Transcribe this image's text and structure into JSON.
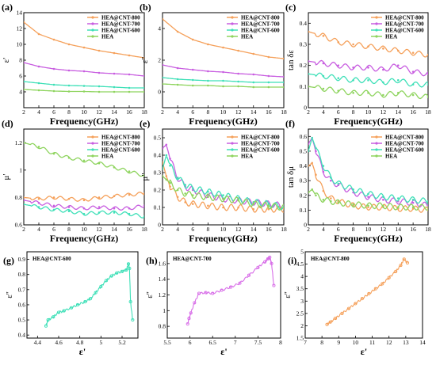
{
  "colors": {
    "HEA@CNT-800": "#f5a05a",
    "HEA@CNT-700": "#c85ee0",
    "HEA@CNT-600": "#3fe0b8",
    "HEA": "#8ed45e"
  },
  "chart_data": [
    {
      "id": "a",
      "panel_label": "(a)",
      "type": "line",
      "xlabel": "Frequency(GHz)",
      "ylabel": "ε'",
      "xlim": [
        2,
        18
      ],
      "ylim": [
        2,
        14
      ],
      "xticks": [
        2,
        4,
        6,
        8,
        10,
        12,
        14,
        16,
        18
      ],
      "yticks": [
        4,
        6,
        8,
        10,
        12,
        14
      ],
      "legend": "top-right",
      "x": [
        2,
        4,
        6,
        8,
        10,
        12,
        14,
        16,
        18
      ],
      "series": [
        {
          "name": "HEA@CNT-800",
          "values": [
            12.8,
            11.3,
            10.6,
            10.0,
            9.6,
            9.2,
            8.9,
            8.6,
            8.3
          ]
        },
        {
          "name": "HEA@CNT-700",
          "values": [
            7.7,
            7.2,
            6.9,
            6.7,
            6.6,
            6.4,
            6.3,
            6.2,
            6.0
          ]
        },
        {
          "name": "HEA@CNT-600",
          "values": [
            5.3,
            5.1,
            4.9,
            4.8,
            4.75,
            4.7,
            4.6,
            4.5,
            4.5
          ]
        },
        {
          "name": "HEA",
          "values": [
            4.3,
            4.2,
            4.1,
            4.05,
            4.05,
            4.0,
            4.0,
            4.0,
            4.0
          ]
        }
      ]
    },
    {
      "id": "b",
      "panel_label": "(b)",
      "type": "line",
      "xlabel": "Frequency(GHz)",
      "ylabel": "ε''",
      "xlim": [
        2,
        18
      ],
      "ylim": [
        -1,
        5
      ],
      "xticks": [
        2,
        4,
        6,
        8,
        10,
        12,
        14,
        16,
        18
      ],
      "yticks": [
        0,
        2,
        4
      ],
      "legend": "top-right",
      "x": [
        2,
        4,
        6,
        8,
        10,
        12,
        14,
        16,
        18
      ],
      "series": [
        {
          "name": "HEA@CNT-800",
          "values": [
            4.6,
            3.8,
            3.3,
            3.0,
            2.8,
            2.6,
            2.4,
            2.2,
            2.1
          ]
        },
        {
          "name": "HEA@CNT-700",
          "values": [
            1.7,
            1.5,
            1.4,
            1.3,
            1.25,
            1.15,
            1.1,
            1.0,
            0.95
          ]
        },
        {
          "name": "HEA@CNT-600",
          "values": [
            0.9,
            0.8,
            0.75,
            0.7,
            0.7,
            0.65,
            0.6,
            0.6,
            0.6
          ]
        },
        {
          "name": "HEA",
          "values": [
            0.5,
            0.45,
            0.4,
            0.4,
            0.35,
            0.35,
            0.3,
            0.3,
            0.3
          ]
        }
      ]
    },
    {
      "id": "c",
      "panel_label": "(c)",
      "type": "line",
      "xlabel": "Frequency(GHz)",
      "ylabel": "tan δε",
      "xlim": [
        2,
        18
      ],
      "ylim": [
        0.0,
        0.45
      ],
      "xticks": [
        2,
        4,
        6,
        8,
        10,
        12,
        14,
        16,
        18
      ],
      "yticks": [
        0.0,
        0.1,
        0.2,
        0.3,
        0.4
      ],
      "legend": "top-right",
      "x": [
        2,
        4,
        6,
        8,
        10,
        12,
        14,
        16,
        18
      ],
      "series": [
        {
          "name": "HEA@CNT-800",
          "values": [
            0.36,
            0.34,
            0.31,
            0.3,
            0.29,
            0.28,
            0.27,
            0.26,
            0.25
          ]
        },
        {
          "name": "HEA@CNT-700",
          "values": [
            0.22,
            0.21,
            0.2,
            0.19,
            0.19,
            0.18,
            0.2,
            0.17,
            0.16
          ]
        },
        {
          "name": "HEA@CNT-600",
          "values": [
            0.16,
            0.15,
            0.14,
            0.13,
            0.13,
            0.12,
            0.13,
            0.11,
            0.11
          ]
        },
        {
          "name": "HEA",
          "values": [
            0.1,
            0.09,
            0.08,
            0.07,
            0.07,
            0.06,
            0.07,
            0.06,
            0.05
          ]
        }
      ]
    },
    {
      "id": "d",
      "panel_label": "(d)",
      "type": "line",
      "xlabel": "Frequency(GHz)",
      "ylabel": "μ'",
      "xlim": [
        2,
        18
      ],
      "ylim": [
        0.6,
        1.3
      ],
      "xticks": [
        2,
        4,
        6,
        8,
        10,
        12,
        14,
        16,
        18
      ],
      "yticks": [
        0.6,
        0.8,
        1.0,
        1.2
      ],
      "legend": "right",
      "x": [
        2,
        4,
        6,
        8,
        10,
        12,
        14,
        16,
        18
      ],
      "series": [
        {
          "name": "HEA@CNT-800",
          "values": [
            0.8,
            0.79,
            0.8,
            0.79,
            0.78,
            0.8,
            0.81,
            0.82,
            0.83
          ]
        },
        {
          "name": "HEA@CNT-700",
          "values": [
            0.78,
            0.76,
            0.74,
            0.73,
            0.72,
            0.73,
            0.72,
            0.72,
            0.74
          ]
        },
        {
          "name": "HEA@CNT-600",
          "values": [
            0.75,
            0.73,
            0.71,
            0.7,
            0.68,
            0.69,
            0.69,
            0.68,
            0.66
          ]
        },
        {
          "name": "HEA",
          "values": [
            1.2,
            1.17,
            1.12,
            1.09,
            1.07,
            1.05,
            1.02,
            0.99,
            0.96
          ]
        }
      ]
    },
    {
      "id": "e",
      "panel_label": "(e)",
      "type": "line",
      "xlabel": "Frequency(GHz)",
      "ylabel": "μ''",
      "xlim": [
        2,
        18
      ],
      "ylim": [
        0.0,
        0.55
      ],
      "xticks": [
        2,
        4,
        6,
        8,
        10,
        12,
        14,
        16,
        18
      ],
      "yticks": [
        0.0,
        0.1,
        0.2,
        0.3,
        0.4,
        0.5
      ],
      "legend": "right",
      "x": [
        2,
        2.5,
        3,
        4,
        5,
        6,
        8,
        10,
        12,
        14,
        16,
        18
      ],
      "series": [
        {
          "name": "HEA@CNT-800",
          "values": [
            0.36,
            0.28,
            0.22,
            0.16,
            0.13,
            0.12,
            0.11,
            0.1,
            0.1,
            0.09,
            0.09,
            0.09
          ]
        },
        {
          "name": "HEA@CNT-700",
          "values": [
            0.44,
            0.46,
            0.38,
            0.27,
            0.22,
            0.2,
            0.17,
            0.15,
            0.14,
            0.13,
            0.12,
            0.11
          ]
        },
        {
          "name": "HEA@CNT-600",
          "values": [
            0.32,
            0.4,
            0.34,
            0.27,
            0.23,
            0.21,
            0.19,
            0.17,
            0.15,
            0.13,
            0.12,
            0.1
          ]
        },
        {
          "name": "HEA",
          "values": [
            0.28,
            0.26,
            0.24,
            0.2,
            0.18,
            0.17,
            0.16,
            0.15,
            0.14,
            0.12,
            0.11,
            0.1
          ]
        }
      ]
    },
    {
      "id": "f",
      "panel_label": "(f)",
      "type": "line",
      "xlabel": "Frequency(GHz)",
      "ylabel": "tan δμ",
      "xlim": [
        2,
        18
      ],
      "ylim": [
        0.0,
        0.65
      ],
      "xticks": [
        2,
        4,
        6,
        8,
        10,
        12,
        14,
        16,
        18
      ],
      "yticks": [
        0.0,
        0.1,
        0.2,
        0.3,
        0.4,
        0.5,
        0.6
      ],
      "legend": "right",
      "x": [
        2,
        2.5,
        3,
        4,
        5,
        6,
        8,
        10,
        12,
        14,
        16,
        18
      ],
      "series": [
        {
          "name": "HEA@CNT-800",
          "values": [
            0.4,
            0.42,
            0.34,
            0.23,
            0.18,
            0.16,
            0.13,
            0.12,
            0.12,
            0.11,
            0.11,
            0.1
          ]
        },
        {
          "name": "HEA@CNT-700",
          "values": [
            0.55,
            0.59,
            0.5,
            0.36,
            0.3,
            0.27,
            0.22,
            0.19,
            0.17,
            0.16,
            0.15,
            0.13
          ]
        },
        {
          "name": "HEA@CNT-600",
          "values": [
            0.5,
            0.59,
            0.52,
            0.4,
            0.32,
            0.28,
            0.24,
            0.21,
            0.19,
            0.18,
            0.17,
            0.16
          ]
        },
        {
          "name": "HEA",
          "values": [
            0.22,
            0.24,
            0.2,
            0.17,
            0.16,
            0.15,
            0.14,
            0.13,
            0.13,
            0.12,
            0.12,
            0.12
          ]
        }
      ]
    },
    {
      "id": "g",
      "panel_label": "(g)",
      "type": "scatter",
      "tag": "HEA@CNT-600",
      "color": "#3fe0b8",
      "xlabel": "ε'",
      "ylabel": "ε''",
      "xlim": [
        4.3,
        5.35
      ],
      "ylim": [
        0.38,
        0.95
      ],
      "xticks": [
        4.4,
        4.6,
        4.8,
        5.0,
        5.2
      ],
      "yticks": [
        0.4,
        0.5,
        0.6,
        0.7,
        0.8,
        0.9
      ],
      "x": [
        4.48,
        4.5,
        4.55,
        4.6,
        4.65,
        4.72,
        4.78,
        4.85,
        4.9,
        4.95,
        5.0,
        5.05,
        5.1,
        5.15,
        5.2,
        5.24,
        5.26,
        5.27,
        5.28,
        5.3
      ],
      "y": [
        0.46,
        0.5,
        0.52,
        0.55,
        0.56,
        0.58,
        0.6,
        0.62,
        0.64,
        0.68,
        0.72,
        0.76,
        0.79,
        0.81,
        0.82,
        0.83,
        0.87,
        0.84,
        0.62,
        0.5
      ]
    },
    {
      "id": "h",
      "panel_label": "(h)",
      "type": "scatter",
      "tag": "HEA@CNT-700",
      "color": "#d86fe8",
      "xlabel": "ε'",
      "ylabel": "ε''",
      "xlim": [
        5.5,
        8.0
      ],
      "ylim": [
        0.65,
        1.75
      ],
      "xticks": [
        5.5,
        6.0,
        6.5,
        7.0,
        7.5,
        8.0
      ],
      "yticks": [
        0.8,
        1.0,
        1.2,
        1.4,
        1.6
      ],
      "x": [
        5.95,
        5.98,
        6.02,
        6.1,
        6.2,
        6.35,
        6.5,
        6.7,
        6.9,
        7.1,
        7.3,
        7.5,
        7.65,
        7.72,
        7.76,
        7.8,
        7.85
      ],
      "y": [
        0.83,
        0.9,
        0.97,
        1.1,
        1.22,
        1.23,
        1.22,
        1.26,
        1.3,
        1.35,
        1.45,
        1.55,
        1.62,
        1.66,
        1.68,
        1.6,
        1.32
      ]
    },
    {
      "id": "i",
      "panel_label": "(i)",
      "type": "scatter",
      "tag": "HEA@CNT-800",
      "color": "#f5a05a",
      "xlabel": "ε'",
      "ylabel": "ε''",
      "xlim": [
        7,
        14
      ],
      "ylim": [
        1.5,
        5.0
      ],
      "xticks": [
        7,
        8,
        9,
        10,
        11,
        12,
        13,
        14
      ],
      "yticks": [
        1.5,
        2.0,
        2.5,
        3.0,
        3.5,
        4.0,
        4.5,
        5.0
      ],
      "x": [
        8.3,
        8.5,
        8.8,
        9.2,
        9.6,
        10.0,
        10.4,
        10.8,
        11.2,
        11.6,
        12.0,
        12.4,
        12.7,
        12.9,
        13.1
      ],
      "y": [
        2.05,
        2.15,
        2.3,
        2.5,
        2.7,
        2.9,
        3.1,
        3.3,
        3.5,
        3.7,
        3.95,
        4.2,
        4.45,
        4.7,
        4.55
      ]
    }
  ]
}
